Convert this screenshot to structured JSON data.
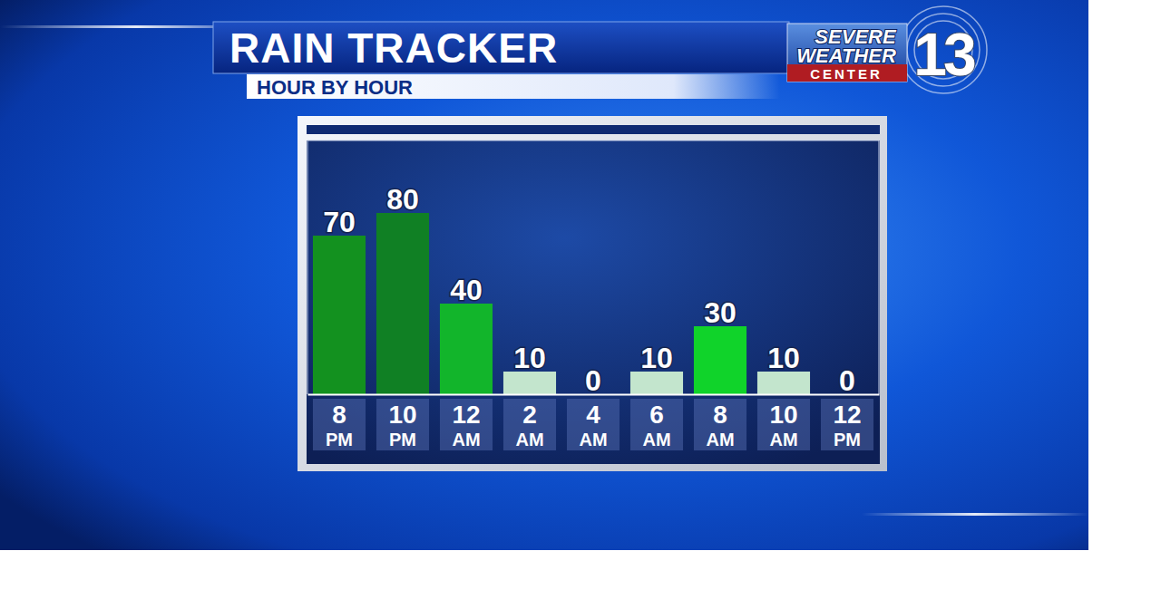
{
  "chart_data": {
    "type": "bar",
    "title": "RAIN TRACKER",
    "subtitle": "HOUR BY HOUR",
    "annotations": [
      "SEVERE",
      "WEATHER",
      "CENTER",
      "13"
    ],
    "categories": [
      "8 PM",
      "10 PM",
      "12 AM",
      "2 AM",
      "4 AM",
      "6 AM",
      "8 AM",
      "10 AM",
      "12 PM"
    ],
    "values": [
      70,
      80,
      40,
      10,
      0,
      10,
      30,
      10,
      0
    ],
    "colors": [
      "#13911f",
      "#108024",
      "#12b52b",
      "#c3e5cd",
      "#c3e5cd",
      "#c3e5cd",
      "#10d32a",
      "#c3e5cd",
      "#c3e5cd"
    ],
    "ylim": [
      0,
      112
    ],
    "data_labels": true,
    "tick_labels": "x"
  }
}
